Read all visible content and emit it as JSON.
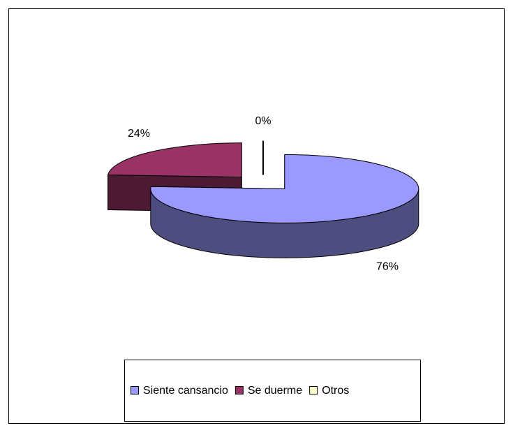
{
  "chart_data": {
    "type": "pie3d",
    "categories": [
      "Siente cansancio",
      "Se duerme",
      "Otros"
    ],
    "values": [
      76,
      24,
      0
    ],
    "value_labels": [
      "76%",
      "24%",
      "0%"
    ],
    "colors": [
      "#9999ff",
      "#993366",
      "#ffffcc"
    ],
    "side_colors": [
      "#4d4d80",
      "#4d1a33",
      "#808066"
    ],
    "legend": "bottom"
  }
}
